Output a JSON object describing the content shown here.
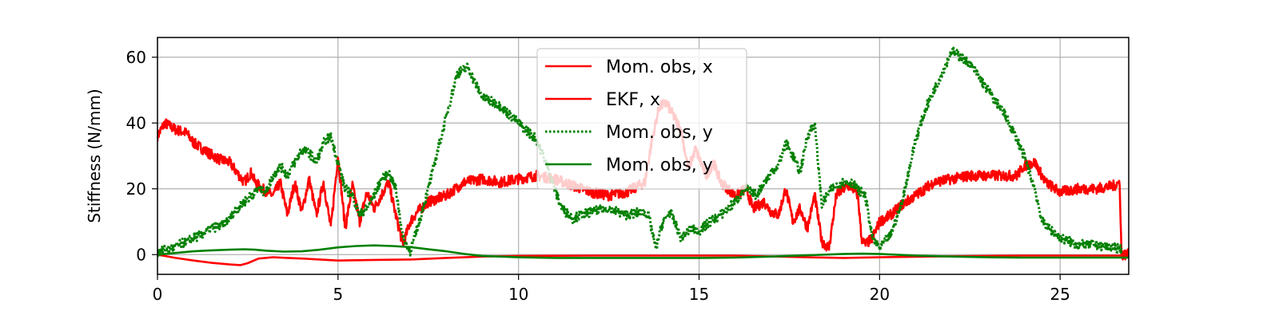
{
  "chart_data": {
    "type": "line",
    "title": "",
    "xlabel": "",
    "ylabel": "Stiffness (N/mm)",
    "xlim": [
      0,
      26.9
    ],
    "ylim": [
      -6,
      66
    ],
    "xticks": [
      0,
      5,
      10,
      15,
      20,
      25
    ],
    "yticks": [
      0,
      20,
      40,
      60
    ],
    "grid": true,
    "legend_position": "top-center",
    "series": [
      {
        "name": "Mom. obs, x",
        "color": "#ff0000",
        "style": "solid",
        "jitter": 1.6,
        "x": [
          0,
          0.2,
          0.5,
          0.8,
          1.0,
          1.4,
          1.7,
          2.0,
          2.2,
          2.4,
          2.6,
          2.7,
          2.9,
          3.2,
          3.4,
          3.6,
          3.8,
          4.0,
          4.2,
          4.4,
          4.6,
          4.8,
          5.0,
          5.2,
          5.4,
          5.6,
          5.8,
          6.0,
          6.2,
          6.4,
          6.6,
          6.8,
          7.0,
          7.2,
          7.5,
          8.0,
          8.5,
          9.0,
          9.5,
          10.0,
          10.5,
          11.0,
          11.5,
          12.0,
          12.5,
          13.0,
          13.5,
          13.7,
          13.9,
          14.1,
          14.3,
          14.5,
          14.7,
          14.9,
          15.2,
          15.4,
          15.6,
          15.8,
          16.0,
          16.3,
          16.5,
          16.8,
          17.0,
          17.2,
          17.4,
          17.6,
          17.8,
          18.0,
          18.2,
          18.4,
          18.6,
          18.8,
          19.0,
          19.2,
          19.4,
          19.5,
          19.6,
          19.8,
          20.0,
          20.3,
          20.6,
          21.0,
          21.5,
          22.0,
          22.5,
          23.0,
          23.5,
          23.8,
          24.0,
          24.3,
          24.6,
          25.0,
          25.5,
          26.0,
          26.5,
          26.65,
          26.7,
          26.9
        ],
        "y": [
          36,
          40,
          38,
          37,
          34,
          31,
          29,
          28,
          25,
          22,
          25,
          22,
          20,
          18,
          22,
          12,
          22,
          13,
          23,
          12,
          22,
          8,
          30,
          8,
          21,
          10,
          19,
          14,
          18,
          22,
          12,
          3,
          10,
          13,
          16,
          18,
          22,
          23,
          22,
          23,
          24,
          23,
          21,
          19,
          18,
          19,
          22,
          35,
          45,
          46,
          42,
          38,
          26,
          32,
          24,
          28,
          22,
          20,
          18,
          20,
          14,
          16,
          13,
          12,
          20,
          10,
          14,
          8,
          18,
          4,
          2,
          18,
          20,
          21,
          18,
          5,
          3,
          5,
          10,
          12,
          15,
          18,
          22,
          23,
          24,
          24,
          24,
          24,
          27,
          28,
          22,
          19,
          20,
          20,
          21,
          22,
          0,
          0
        ]
      },
      {
        "name": "EKF, x",
        "color": "#ff0000",
        "style": "solid",
        "jitter": 0,
        "x": [
          0,
          0.5,
          1.0,
          1.5,
          2.0,
          2.3,
          2.5,
          2.8,
          3.2,
          3.6,
          4.0,
          4.5,
          5.0,
          5.5,
          6.0,
          7.0,
          8.0,
          9.0,
          10.0,
          12.0,
          14.0,
          16.0,
          18.0,
          19.0,
          20.0,
          22.0,
          24.0,
          26.9
        ],
        "y": [
          0,
          -1,
          -1.8,
          -2.5,
          -3,
          -3.2,
          -2.6,
          -1.2,
          -0.8,
          -1,
          -1.2,
          -1.5,
          -1.8,
          -1.7,
          -1.6,
          -1.5,
          -1,
          -0.6,
          -0.4,
          -0.3,
          -0.3,
          -0.3,
          -0.8,
          -1,
          -0.8,
          -0.5,
          -0.3,
          -0.3
        ]
      },
      {
        "name": "Mom. obs, y",
        "color": "#008000",
        "style": "dotted",
        "jitter": 1.4,
        "x": [
          0,
          0.4,
          0.8,
          1.2,
          1.5,
          1.8,
          2.0,
          2.2,
          2.4,
          2.6,
          2.8,
          3.0,
          3.2,
          3.4,
          3.6,
          3.8,
          4.0,
          4.2,
          4.4,
          4.6,
          4.8,
          5.0,
          5.2,
          5.4,
          5.6,
          5.8,
          6.0,
          6.2,
          6.4,
          6.6,
          6.8,
          7.0,
          7.2,
          7.5,
          8.0,
          8.3,
          8.6,
          8.8,
          9.0,
          9.5,
          10.0,
          10.5,
          10.8,
          11.0,
          11.2,
          11.5,
          12.0,
          12.5,
          13.0,
          13.4,
          13.6,
          13.8,
          14.0,
          14.2,
          14.5,
          14.8,
          15.0,
          15.3,
          15.6,
          16.0,
          16.3,
          16.6,
          16.8,
          17.0,
          17.2,
          17.4,
          17.6,
          17.8,
          18.0,
          18.2,
          18.4,
          18.6,
          18.8,
          19.0,
          19.2,
          19.4,
          19.6,
          19.8,
          20.0,
          20.3,
          20.6,
          21.0,
          21.3,
          21.6,
          22.0,
          22.5,
          23.0,
          23.5,
          23.8,
          24.0,
          24.3,
          24.5,
          25.0,
          25.5,
          26.0,
          26.5,
          26.7
        ],
        "y": [
          1,
          2,
          4,
          6,
          8,
          9,
          11,
          14,
          16,
          18,
          20,
          19,
          24,
          27,
          24,
          28,
          32,
          31,
          28,
          34,
          36,
          28,
          20,
          18,
          12,
          14,
          18,
          23,
          25,
          20,
          5,
          1,
          8,
          20,
          42,
          55,
          57,
          52,
          48,
          45,
          40,
          35,
          27,
          20,
          14,
          11,
          13,
          14,
          12,
          13,
          12,
          2,
          10,
          13,
          5,
          8,
          7,
          10,
          12,
          16,
          20,
          18,
          22,
          25,
          27,
          34,
          30,
          25,
          36,
          40,
          15,
          19,
          21,
          22,
          22,
          20,
          18,
          5,
          2,
          6,
          15,
          35,
          45,
          52,
          62,
          58,
          50,
          42,
          35,
          30,
          20,
          10,
          5,
          3,
          3,
          2,
          2
        ]
      },
      {
        "name": "Mom. obs, y",
        "color": "#008000",
        "style": "solid",
        "jitter": 0,
        "x": [
          0,
          0.5,
          1.0,
          1.5,
          2.0,
          2.4,
          2.7,
          3.0,
          3.5,
          4.0,
          4.5,
          5.0,
          5.5,
          6.0,
          6.5,
          7.0,
          7.5,
          8.0,
          8.5,
          9.0,
          10.0,
          11.0,
          12.0,
          13.0,
          14.0,
          15.0,
          16.0,
          17.0,
          18.0,
          19.0,
          19.5,
          20.0,
          21.0,
          22.0,
          23.0,
          24.0,
          25.0,
          26.0,
          26.9
        ],
        "y": [
          0,
          0.5,
          1,
          1.3,
          1.5,
          1.6,
          1.5,
          1.2,
          0.9,
          1,
          1.5,
          2.2,
          2.6,
          2.8,
          2.6,
          2.3,
          1.6,
          1,
          0.2,
          -0.4,
          -0.8,
          -1,
          -1,
          -1,
          -1,
          -1,
          -0.9,
          -0.6,
          -0.2,
          0.2,
          0.3,
          0.2,
          -0.3,
          -0.6,
          -0.8,
          -0.9,
          -0.9,
          -0.9,
          -0.9
        ]
      }
    ],
    "legend": [
      "Mom. obs, x",
      "EKF, x",
      "Mom. obs, y",
      "Mom. obs, y"
    ]
  }
}
